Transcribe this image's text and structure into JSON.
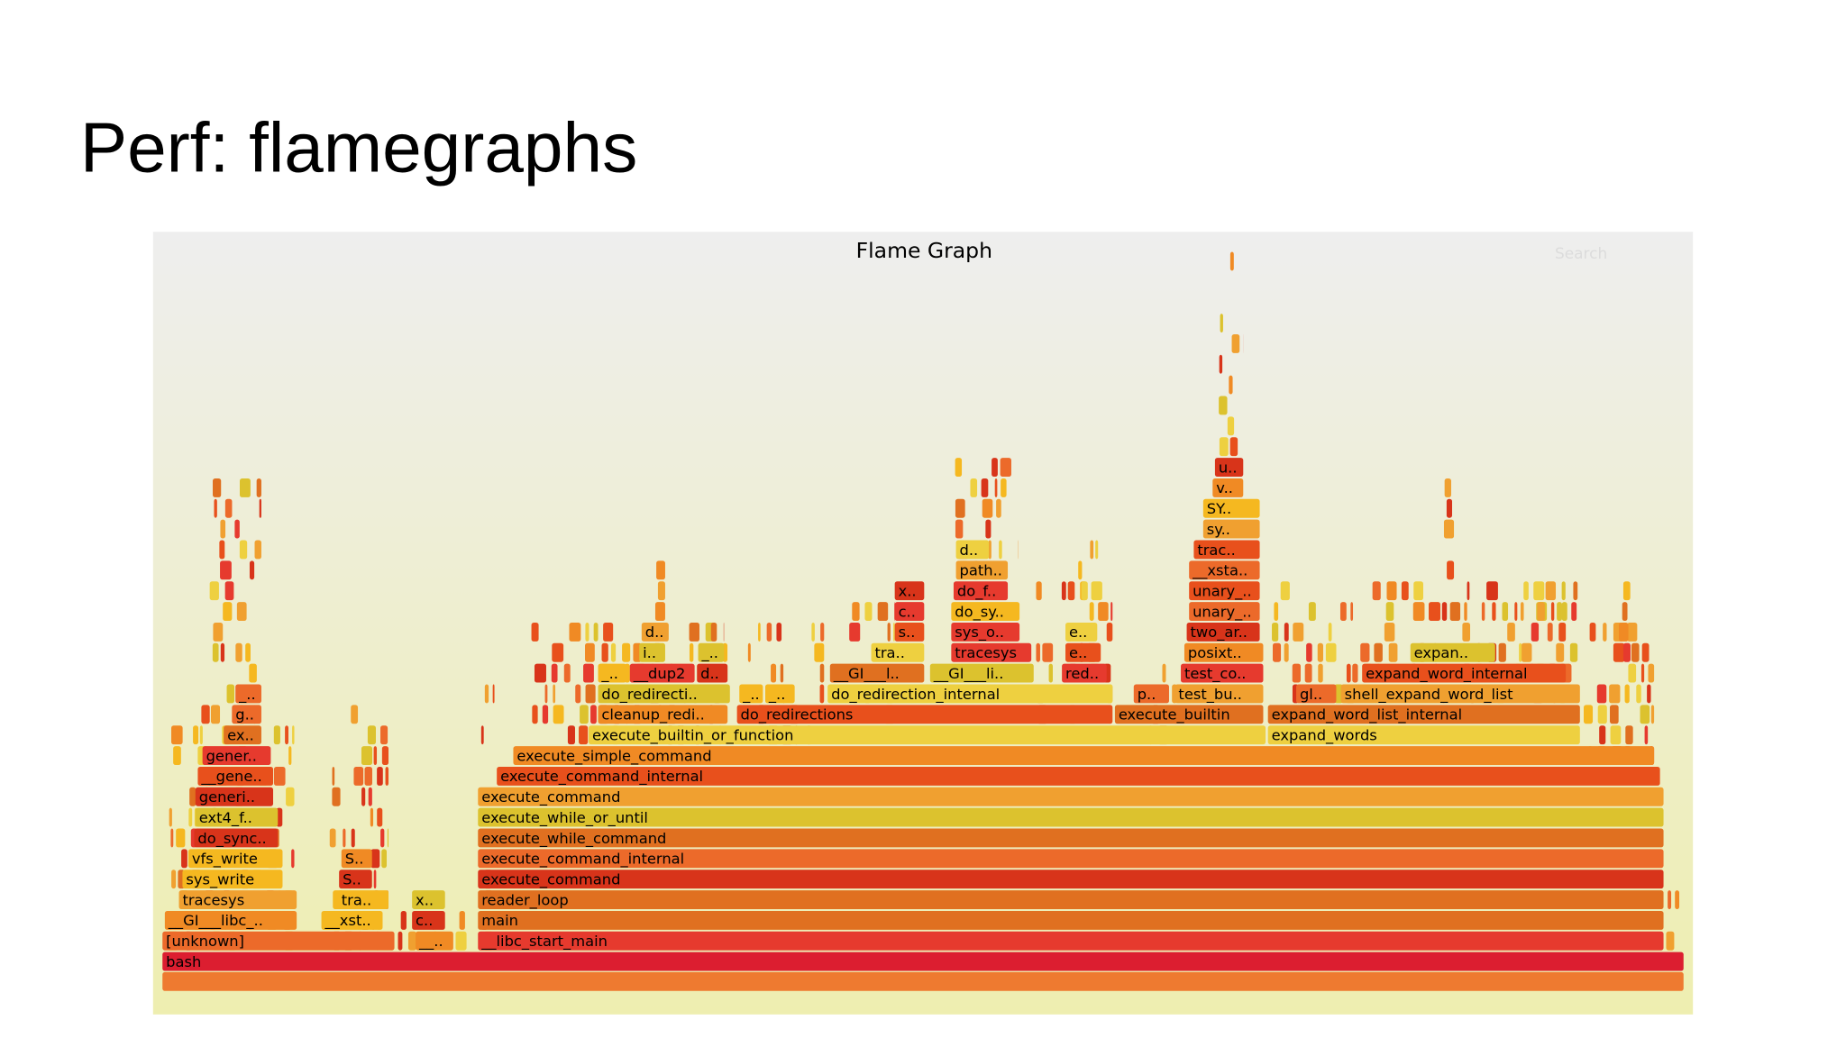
{
  "slide": {
    "title": "Perf: flamegraphs"
  },
  "flamegraph": {
    "title": "Flame Graph",
    "search": "Search",
    "frames": [
      "bash",
      "[unknown]",
      "__..",
      "__libc_start_main",
      "__GI___libc_..",
      "__xst..",
      "c..",
      "main",
      "tracesys",
      "tra..",
      "x..",
      "reader_loop",
      "sys_write",
      "S..",
      "execute_command",
      "vfs_write",
      "S..",
      "execute_command_internal",
      "do_sync..",
      "execute_while_command",
      "ext4_f..",
      "execute_while_or_until",
      "generi..",
      "execute_command",
      "__gene..",
      "execute_command_internal",
      "gener..",
      "execute_simple_command",
      "ex..",
      "execute_builtin_or_function",
      "expand_words",
      "g..",
      "cleanup_redi..",
      "do_redirections",
      "execute_builtin",
      "expand_word_list_internal",
      "_..",
      "do_redirecti..",
      "_..",
      "_..",
      "do_redirection_internal",
      "p..",
      "test_bu..",
      "gl..",
      "shell_expand_word_list",
      "_..",
      "__dup2",
      "d..",
      "__GI___l..",
      "__GI___li..",
      "red..",
      "test_co..",
      "expand_word_internal",
      "i..",
      "_..",
      "tra..",
      "tracesys",
      "e..",
      "posixt..",
      "expan..",
      "d..",
      "s..",
      "sys_o..",
      "e..",
      "two_ar..",
      "c..",
      "do_sy..",
      "unary_..",
      "x..",
      "do_f..",
      "unary_..",
      "path..",
      "__xsta..",
      "d..",
      "trac..",
      "sy..",
      "SY..",
      "v..",
      "u.."
    ]
  }
}
